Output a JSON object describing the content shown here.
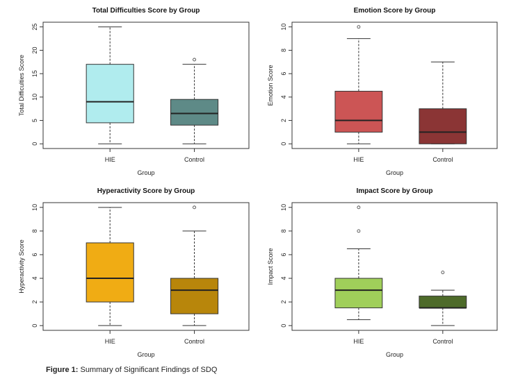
{
  "caption": {
    "label": "Figure 1:",
    "text": "Summary of Significant Findings of SDQ"
  },
  "chart_data": [
    {
      "type": "boxplot",
      "title": "Total Difficulties Score by Group",
      "xlabel": "Group",
      "ylabel": "Total Difficulties Score",
      "ylim": [
        -1,
        26
      ],
      "yticks": [
        0,
        5,
        10,
        15,
        20,
        25
      ],
      "categories": [
        "HIE",
        "Control"
      ],
      "series": [
        {
          "min": 0,
          "q1": 4.5,
          "median": 9,
          "q3": 17,
          "max": 25,
          "outliers": [],
          "color": "#b0ecee"
        },
        {
          "min": 0,
          "q1": 4,
          "median": 6.5,
          "q3": 9.5,
          "max": 17,
          "outliers": [
            18
          ],
          "color": "#5e8a87"
        }
      ]
    },
    {
      "type": "boxplot",
      "title": "Emotion Score by Group",
      "xlabel": "Group",
      "ylabel": "Emotion Score",
      "ylim": [
        -0.4,
        10.4
      ],
      "yticks": [
        0,
        2,
        4,
        6,
        8,
        10
      ],
      "categories": [
        "HIE",
        "Control"
      ],
      "series": [
        {
          "min": 0,
          "q1": 1,
          "median": 2,
          "q3": 4.5,
          "max": 9,
          "outliers": [
            10
          ],
          "color": "#cc5555"
        },
        {
          "min": 0,
          "q1": 0,
          "median": 1,
          "q3": 3,
          "max": 7,
          "outliers": [],
          "color": "#8b3535"
        }
      ]
    },
    {
      "type": "boxplot",
      "title": "Hyperactivity Score by Group",
      "xlabel": "Group",
      "ylabel": "Hyperactivity Score",
      "ylim": [
        -0.4,
        10.4
      ],
      "yticks": [
        0,
        2,
        4,
        6,
        8,
        10
      ],
      "categories": [
        "HIE",
        "Control"
      ],
      "series": [
        {
          "min": 0,
          "q1": 2,
          "median": 4,
          "q3": 7,
          "max": 10,
          "outliers": [],
          "color": "#f0ac14"
        },
        {
          "min": 0,
          "q1": 1,
          "median": 3,
          "q3": 4,
          "max": 8,
          "outliers": [
            10
          ],
          "color": "#b8860b"
        }
      ]
    },
    {
      "type": "boxplot",
      "title": "Impact Score by Group",
      "xlabel": "Group",
      "ylabel": "Impact Score",
      "ylim": [
        -0.4,
        10.4
      ],
      "yticks": [
        0,
        2,
        4,
        6,
        8,
        10
      ],
      "categories": [
        "HIE",
        "Control"
      ],
      "series": [
        {
          "min": 0.5,
          "q1": 1.5,
          "median": 3,
          "q3": 4,
          "max": 6.5,
          "outliers": [
            8,
            10
          ],
          "color": "#a0cf5a"
        },
        {
          "min": 0,
          "q1": 1.5,
          "median": 1.5,
          "q3": 2.5,
          "max": 3,
          "outliers": [
            4.5
          ],
          "color": "#4e6b2a"
        }
      ]
    }
  ]
}
